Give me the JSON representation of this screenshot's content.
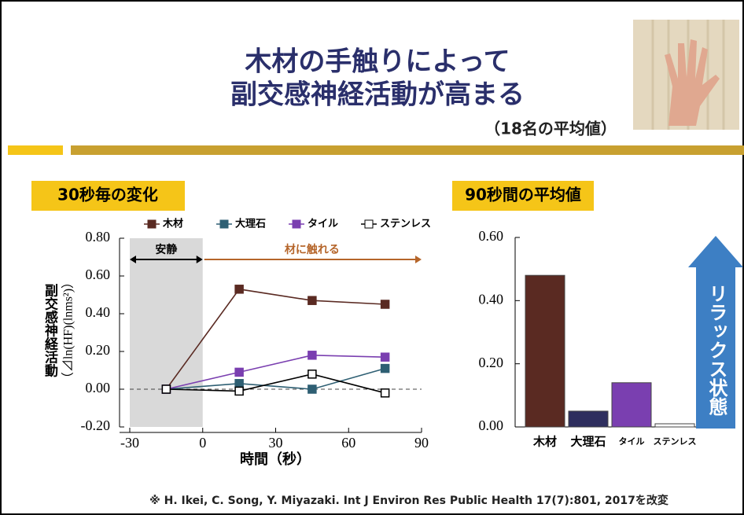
{
  "header": {
    "title": [
      "木材の手触りによって",
      "副交感神経活動が高まる"
    ],
    "subtitle": "（18名の平均値）"
  },
  "chart_data": [
    {
      "type": "line",
      "title": "30秒毎の変化",
      "x_label": "時間（秒）",
      "y_label": [
        "副交感神経活動",
        "（⊿ln(HF)(lnms²)）"
      ],
      "x": [
        -15,
        15,
        45,
        75
      ],
      "xlim": [
        -30,
        90
      ],
      "xticks": [
        -30,
        0,
        30,
        60,
        90
      ],
      "ylim": [
        -0.2,
        0.8
      ],
      "yticks": [
        {
          "value": -0.2,
          "label": "-0.20"
        },
        {
          "value": 0,
          "label": "0.00"
        },
        {
          "value": 0.2,
          "label": "0.20"
        },
        {
          "value": 0.4,
          "label": "0.40"
        },
        {
          "value": 0.6,
          "label": "0.60"
        },
        {
          "value": 0.8,
          "label": "0.80"
        }
      ],
      "reference_line": 0,
      "annotations": [
        {
          "text": "安静",
          "x": [
            -30,
            0
          ],
          "color": "#000000"
        },
        {
          "text": "材に触れる",
          "x": [
            0,
            90
          ],
          "color": "#b5652a"
        }
      ],
      "series": [
        {
          "name": "木材",
          "color": "#5a2a22",
          "values": [
            0,
            0.53,
            0.47,
            0.45
          ]
        },
        {
          "name": "大理石",
          "color": "#2e5f73",
          "values": [
            0,
            0.03,
            0,
            0.11
          ]
        },
        {
          "name": "タイル",
          "color": "#7a3fb0",
          "values": [
            0,
            0.09,
            0.18,
            0.17
          ]
        },
        {
          "name": "ステンレス",
          "color": "#000000",
          "values": [
            0,
            -0.01,
            0.08,
            -0.02
          ]
        }
      ]
    },
    {
      "type": "bar",
      "title": "90秒間の平均値",
      "categories": [
        "木材",
        "大理石",
        "タイル",
        "ステンレス"
      ],
      "values": [
        0.48,
        0.05,
        0.14,
        0.01
      ],
      "colors": [
        "#5a2a22",
        "#2e2e5e",
        "#7a3fb0",
        "#ffffff"
      ],
      "ylim": [
        0,
        0.6
      ],
      "yticks": [
        {
          "value": 0,
          "label": "0.00"
        },
        {
          "value": 0.2,
          "label": "0.20"
        },
        {
          "value": 0.4,
          "label": "0.40"
        },
        {
          "value": 0.6,
          "label": "0.60"
        }
      ],
      "annotation": "リラックス状態"
    }
  ],
  "footer": "※ H. Ikei, C. Song, Y. Miyazaki. Int J Environ Res Public Health 17(7):801, 2017を改変"
}
